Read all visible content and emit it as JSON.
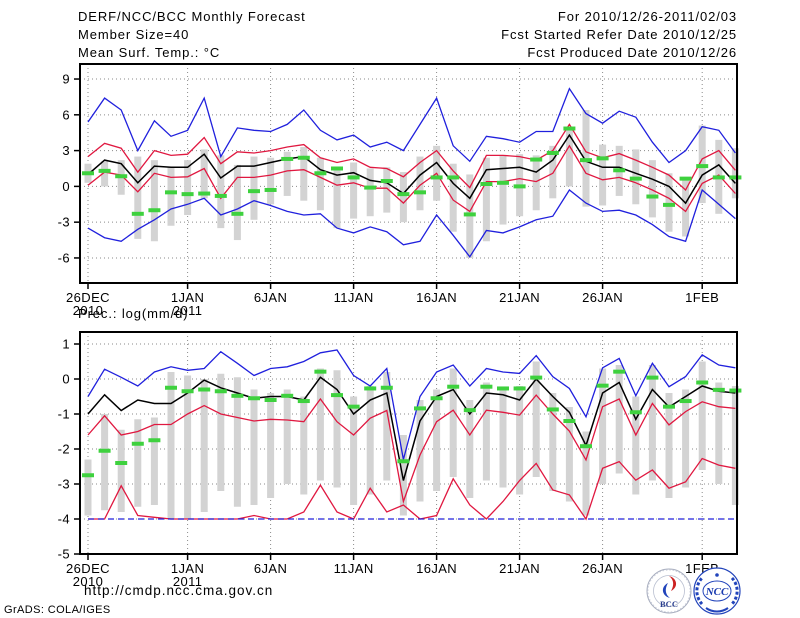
{
  "header": {
    "title": "DERF/NCC/BCC Monthly Forecast",
    "member_size": "Member Size=40",
    "forecast_period": "For 2010/12/26-2011/02/03",
    "refer_date": "Fcst Started Refer Date 2010/12/25",
    "produced_date": "Fcst Produced Date 2010/12/26"
  },
  "footer": {
    "url": "http://cmdp.ncc.cma.gov.cn",
    "credit": "GrADS: COLA/IGES",
    "logos": [
      {
        "name": "BCC",
        "label": "BCC"
      },
      {
        "name": "NCC",
        "label": "NCC"
      }
    ]
  },
  "colors": {
    "blue": "#2020dd",
    "red": "#e01840",
    "black": "#000000",
    "green": "#3ed13e",
    "bar": "#d3d3d3",
    "grid": "#8a8a8a",
    "frame": "#000000",
    "logo_blue": "#2244bb",
    "logo_red": "#cc2222"
  },
  "chart_data": [
    {
      "type": "line",
      "name": "temperature",
      "title": "Mean Surf. Temp.: °C",
      "grid": true,
      "x_ticks": [
        {
          "label": "26DEC",
          "sub": "2010",
          "day": 1
        },
        {
          "label": "1JAN",
          "sub": "2011",
          "day": 7
        },
        {
          "label": "6JAN",
          "day": 12
        },
        {
          "label": "11JAN",
          "day": 17
        },
        {
          "label": "16JAN",
          "day": 22
        },
        {
          "label": "21JAN",
          "day": 27
        },
        {
          "label": "26JAN",
          "day": 32
        },
        {
          "label": "1FEB",
          "day": 38
        }
      ],
      "y_ticks": [
        9,
        6,
        3,
        0,
        -3,
        -6
      ],
      "ylim": [
        -8.1,
        10.26
      ],
      "n_days": 40,
      "series": [
        {
          "name": "ensemble max",
          "color": "blue",
          "values": [
            5.4,
            7.4,
            6.4,
            3.0,
            5.5,
            4.2,
            4.7,
            7.4,
            2.5,
            4.9,
            4.7,
            4.6,
            5.2,
            6.4,
            4.7,
            3.9,
            4.3,
            3.3,
            3.7,
            3.0,
            5.2,
            7.4,
            3.4,
            2.1,
            4.2,
            4.0,
            3.7,
            4.6,
            4.6,
            8.2,
            6.1,
            5.3,
            6.3,
            5.8,
            3.7,
            2.0,
            3.0,
            5.0,
            4.7,
            2.8
          ]
        },
        {
          "name": "spread upper",
          "color": "red",
          "values": [
            2.5,
            3.6,
            3.2,
            1.2,
            3.0,
            2.6,
            2.7,
            4.1,
            1.9,
            2.9,
            2.8,
            3.0,
            3.3,
            3.5,
            2.4,
            2.0,
            2.3,
            1.6,
            1.5,
            0.8,
            2.0,
            3.0,
            1.3,
            -0.1,
            2.6,
            2.6,
            2.5,
            2.2,
            3.0,
            5.2,
            2.9,
            2.4,
            2.75,
            2.2,
            1.6,
            0.95,
            -0.3,
            2.3,
            3.0,
            1.35
          ]
        },
        {
          "name": "ensemble mean",
          "color": "black",
          "values": [
            1.0,
            2.2,
            1.9,
            0.3,
            1.7,
            1.6,
            1.6,
            2.7,
            0.7,
            1.7,
            1.7,
            2.0,
            2.3,
            2.5,
            1.4,
            0.95,
            1.15,
            0.5,
            0.3,
            -0.6,
            0.95,
            2.0,
            0.25,
            -1.0,
            1.4,
            1.5,
            1.6,
            1.2,
            2.2,
            4.3,
            2.1,
            1.6,
            1.6,
            1.1,
            0.6,
            0.0,
            -1.4,
            0.95,
            1.8,
            0.25
          ]
        },
        {
          "name": "spread lower",
          "color": "red",
          "values": [
            0.1,
            1.2,
            0.95,
            -0.45,
            1.1,
            0.75,
            0.8,
            1.5,
            -1.0,
            0.75,
            0.75,
            0.95,
            1.3,
            1.4,
            0.75,
            0.1,
            0.3,
            -0.15,
            -0.15,
            -1.4,
            0.1,
            1.1,
            -1.15,
            -2.1,
            0.4,
            0.4,
            0.65,
            0.4,
            1.1,
            3.4,
            1.1,
            0.55,
            0.75,
            0.3,
            -0.3,
            -1.0,
            -2.1,
            0.25,
            0.95,
            -0.6
          ]
        },
        {
          "name": "ensemble min",
          "color": "blue",
          "values": [
            -3.5,
            -4.3,
            -4.6,
            -3.6,
            -2.8,
            -1.9,
            -1.5,
            -1.0,
            -2.4,
            -1.9,
            -1.2,
            -1.6,
            -2.1,
            -2.4,
            -2.3,
            -3.5,
            -3.9,
            -3.4,
            -3.8,
            -4.9,
            -4.6,
            -2.4,
            -4.1,
            -5.9,
            -3.7,
            -3.9,
            -3.4,
            -2.8,
            -2.5,
            -0.3,
            -1.4,
            -2.1,
            -2.0,
            -2.4,
            -3.2,
            -4.2,
            -4.6,
            -0.3,
            -1.5,
            -2.7
          ]
        }
      ],
      "markers": {
        "name": "daily observation",
        "color": "green",
        "values": [
          1.1,
          1.3,
          0.85,
          -2.3,
          -2.0,
          -0.5,
          -0.65,
          -0.6,
          -0.8,
          -2.3,
          -0.4,
          -0.3,
          2.3,
          2.4,
          1.1,
          1.5,
          0.75,
          -0.1,
          0.45,
          -0.65,
          -0.5,
          0.75,
          0.75,
          -2.35,
          0.2,
          0.3,
          0.0,
          2.25,
          2.8,
          4.85,
          2.2,
          2.35,
          1.35,
          0.65,
          -0.85,
          -1.55,
          0.65,
          1.7,
          0.75,
          0.75
        ]
      },
      "bars": {
        "name": "member spread",
        "color": "bar",
        "ranges": [
          [
            0.3,
            1.9
          ],
          [
            0.0,
            2.1
          ],
          [
            -0.7,
            2.2
          ],
          [
            -4.4,
            2.5
          ],
          [
            -4.6,
            2.2
          ],
          [
            -3.3,
            1.6
          ],
          [
            -2.4,
            2.2
          ],
          [
            -1.0,
            3.1
          ],
          [
            -3.5,
            2.6
          ],
          [
            -4.5,
            1.8
          ],
          [
            -2.8,
            2.5
          ],
          [
            -1.5,
            2.4
          ],
          [
            -0.8,
            2.9
          ],
          [
            -1.2,
            3.3
          ],
          [
            -2.0,
            2.4
          ],
          [
            -3.5,
            1.6
          ],
          [
            -2.7,
            2.0
          ],
          [
            -2.5,
            1.5
          ],
          [
            -2.2,
            1.6
          ],
          [
            -3.0,
            1.2
          ],
          [
            -2.0,
            2.5
          ],
          [
            -1.2,
            3.4
          ],
          [
            -3.8,
            1.9
          ],
          [
            -6.0,
            1.0
          ],
          [
            -4.6,
            2.4
          ],
          [
            -3.2,
            2.6
          ],
          [
            -2.5,
            2.7
          ],
          [
            -2.0,
            2.6
          ],
          [
            -1.0,
            3.4
          ],
          [
            0.0,
            4.9
          ],
          [
            -1.7,
            6.4
          ],
          [
            -1.6,
            3.5
          ],
          [
            -0.8,
            3.4
          ],
          [
            -1.5,
            3.1
          ],
          [
            -2.6,
            2.2
          ],
          [
            -3.8,
            1.1
          ],
          [
            -4.2,
            0.6
          ],
          [
            -1.4,
            5.1
          ],
          [
            -2.3,
            3.9
          ],
          [
            -1.0,
            3.2
          ]
        ]
      }
    },
    {
      "type": "line",
      "name": "precipitation",
      "title": "Prec.: log(mm/d)",
      "grid": true,
      "x_ticks": [
        {
          "label": "26DEC",
          "sub": "2010",
          "day": 1
        },
        {
          "label": "1JAN",
          "sub": "2011",
          "day": 7
        },
        {
          "label": "6JAN",
          "day": 12
        },
        {
          "label": "11JAN",
          "day": 17
        },
        {
          "label": "16JAN",
          "day": 22
        },
        {
          "label": "21JAN",
          "day": 27
        },
        {
          "label": "26JAN",
          "day": 32
        },
        {
          "label": "1FEB",
          "day": 38
        }
      ],
      "y_ticks": [
        1,
        0,
        -1,
        -2,
        -3,
        -4,
        -5
      ],
      "ylim": [
        -5,
        1.343
      ],
      "n_days": 40,
      "series": [
        {
          "name": "ensemble max",
          "color": "blue",
          "values": [
            -0.5,
            0.28,
            0.05,
            -0.2,
            0.2,
            0.35,
            0.25,
            0.3,
            0.78,
            0.45,
            0.1,
            0.3,
            0.35,
            0.5,
            0.75,
            0.83,
            0.1,
            -0.2,
            0.3,
            -2.3,
            -0.5,
            0.2,
            0.4,
            -0.2,
            0.3,
            0.2,
            0.16,
            0.67,
            0.07,
            -0.27,
            -1.08,
            0.32,
            0.59,
            -0.48,
            0.45,
            -0.22,
            0.07,
            0.69,
            0.4,
            0.32
          ]
        },
        {
          "name": "ensemble mean",
          "color": "black",
          "values": [
            -1.0,
            -0.45,
            -0.9,
            -0.6,
            -0.7,
            -0.7,
            -0.4,
            -0.03,
            -0.25,
            -0.4,
            -0.55,
            -0.5,
            -0.5,
            -0.6,
            0.05,
            -0.3,
            -1.0,
            -0.6,
            -0.4,
            -2.9,
            -1.2,
            -0.5,
            -0.3,
            -1.0,
            -0.4,
            -0.45,
            -0.6,
            0.0,
            -0.5,
            -0.95,
            -1.9,
            -0.4,
            -0.1,
            -1.15,
            -0.3,
            -0.8,
            -0.5,
            -0.2,
            -0.35,
            -0.4
          ]
        },
        {
          "name": "spread mid",
          "color": "red",
          "values": [
            -1.6,
            -1.05,
            -1.6,
            -1.5,
            -1.3,
            -1.3,
            -1.0,
            -0.76,
            -1.0,
            -1.1,
            -1.2,
            -1.15,
            -1.17,
            -1.22,
            -0.57,
            -1.22,
            -1.6,
            -1.12,
            -0.9,
            -3.5,
            -2.17,
            -1.22,
            -0.89,
            -1.6,
            -0.89,
            -0.95,
            -1.03,
            -0.46,
            -1.0,
            -1.49,
            -2.31,
            -0.79,
            -0.57,
            -1.6,
            -0.7,
            -1.31,
            -0.93,
            -0.65,
            -0.79,
            -0.84
          ]
        },
        {
          "name": "spread lower",
          "color": "red",
          "values": [
            -4.0,
            -4.0,
            -3.05,
            -3.9,
            -3.95,
            -4.0,
            -4.0,
            -4.0,
            -4.0,
            -4.0,
            -3.9,
            -4.0,
            -4.0,
            -3.8,
            -3.03,
            -3.8,
            -4.0,
            -3.12,
            -3.8,
            -3.6,
            -4.0,
            -3.9,
            -2.85,
            -3.6,
            -4.0,
            -3.5,
            -2.9,
            -2.41,
            -3.17,
            -3.31,
            -4.0,
            -2.55,
            -2.36,
            -2.89,
            -2.6,
            -3.12,
            -2.94,
            -2.27,
            -2.46,
            -2.55
          ]
        },
        {
          "name": "ensemble min",
          "color": "blue",
          "dashed": true,
          "values": [
            -4,
            -4,
            -4,
            -4,
            -4,
            -4,
            -4,
            -4,
            -4,
            -4,
            -4,
            -4,
            -4,
            -4,
            -4,
            -4,
            -4,
            -4,
            -4,
            -4,
            -4,
            -4,
            -4,
            -4,
            -4,
            -4,
            -4,
            -4,
            -4,
            -4,
            -4,
            -4,
            -4,
            -4,
            -4,
            -4,
            -4,
            -4,
            -4,
            -4
          ]
        }
      ],
      "markers": {
        "name": "daily observation",
        "color": "green",
        "values": [
          -2.75,
          -2.05,
          -2.4,
          -1.85,
          -1.75,
          -0.25,
          -0.35,
          -0.3,
          -0.35,
          -0.48,
          -0.55,
          -0.6,
          -0.48,
          -0.63,
          0.21,
          -0.46,
          -0.79,
          -0.27,
          -0.25,
          -2.35,
          -0.84,
          -0.55,
          -0.22,
          -0.89,
          -0.22,
          -0.27,
          -0.27,
          0.04,
          -0.87,
          -1.2,
          -1.92,
          -0.19,
          0.21,
          -0.95,
          0.04,
          -0.79,
          -0.63,
          -0.1,
          -0.31,
          -0.33
        ]
      },
      "bars": {
        "name": "member spread",
        "color": "bar",
        "ranges": [
          [
            -3.9,
            -2.3
          ],
          [
            -3.75,
            -1.0
          ],
          [
            -3.8,
            -1.45
          ],
          [
            -3.65,
            -1.15
          ],
          [
            -3.6,
            -1.1
          ],
          [
            -4.0,
            0.2
          ],
          [
            -4.0,
            0.1
          ],
          [
            -3.8,
            0.0
          ],
          [
            -3.2,
            0.15
          ],
          [
            -3.65,
            0.05
          ],
          [
            -3.6,
            -0.3
          ],
          [
            -3.4,
            -0.4
          ],
          [
            -3.0,
            -0.3
          ],
          [
            -3.3,
            -0.5
          ],
          [
            -2.9,
            0.3
          ],
          [
            -3.1,
            0.25
          ],
          [
            -3.6,
            -0.5
          ],
          [
            -3.3,
            -0.2
          ],
          [
            -2.9,
            0.2
          ],
          [
            -3.9,
            -1.6
          ],
          [
            -3.5,
            -0.6
          ],
          [
            -3.2,
            -0.3
          ],
          [
            -2.8,
            0.3
          ],
          [
            -3.4,
            -0.6
          ],
          [
            -2.9,
            -0.1
          ],
          [
            -3.1,
            -0.3
          ],
          [
            -3.3,
            -0.2
          ],
          [
            -2.8,
            0.5
          ],
          [
            -3.2,
            -0.4
          ],
          [
            -3.5,
            -0.8
          ],
          [
            -3.9,
            -1.5
          ],
          [
            -3.0,
            0.3
          ],
          [
            -2.7,
            0.4
          ],
          [
            -3.3,
            -0.5
          ],
          [
            -2.9,
            0.4
          ],
          [
            -3.4,
            -0.4
          ],
          [
            -3.1,
            -0.3
          ],
          [
            -2.6,
            0.5
          ],
          [
            -3.0,
            -0.1
          ],
          [
            -3.6,
            -0.2
          ]
        ]
      }
    }
  ]
}
